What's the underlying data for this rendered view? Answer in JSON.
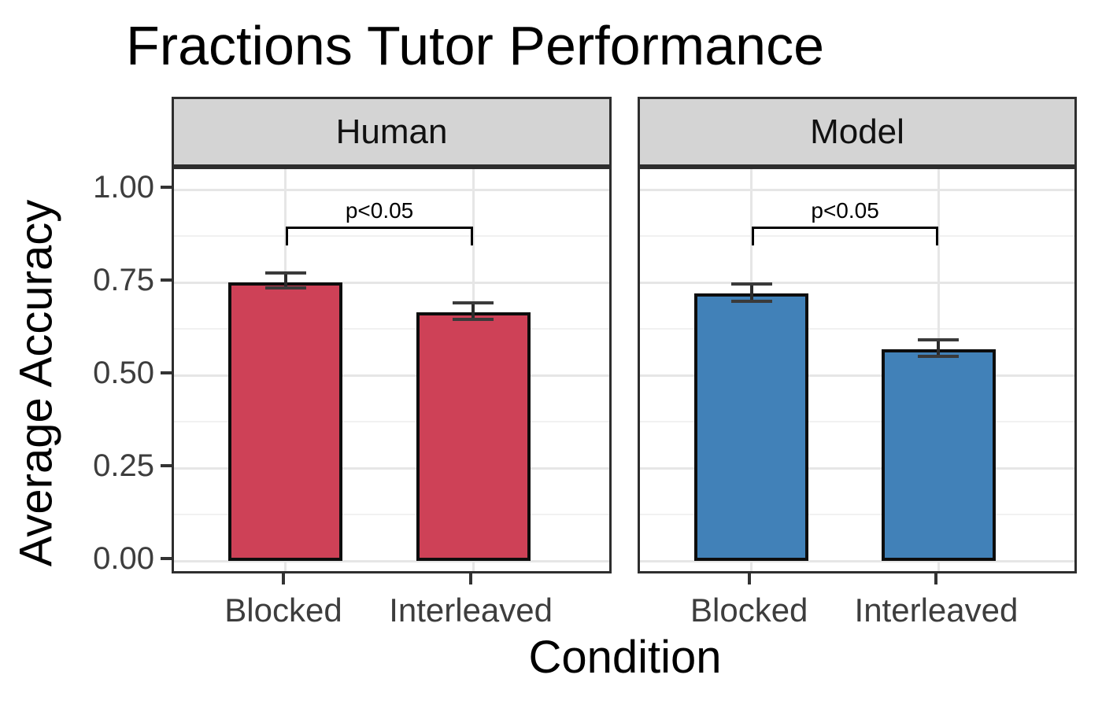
{
  "chart_data": {
    "type": "bar",
    "title": "Fractions Tutor Performance",
    "xlabel": "Condition",
    "ylabel": "Average Accuracy",
    "ylim": [
      0,
      1.05
    ],
    "grid": true,
    "legend": "none",
    "yticks": [
      0,
      0.25,
      0.5,
      0.75,
      1.0
    ],
    "ytick_labels": [
      "0.00",
      "0.25",
      "0.50",
      "0.75",
      "1.00"
    ],
    "yminor": [
      0.125,
      0.375,
      0.625,
      0.875
    ],
    "categories": [
      "Blocked",
      "Interleaved"
    ],
    "facets": [
      {
        "label": "Human",
        "bar_color": "#CE4157",
        "values": [
          0.75,
          0.67
        ],
        "error_low": [
          0.735,
          0.65
        ],
        "error_high": [
          0.775,
          0.695
        ],
        "significance_label": "p<0.05",
        "significance_y": 0.9
      },
      {
        "label": "Model",
        "bar_color": "#4181B8",
        "values": [
          0.72,
          0.57
        ],
        "error_low": [
          0.7,
          0.55
        ],
        "error_high": [
          0.745,
          0.595
        ],
        "significance_label": "p<0.05",
        "significance_y": 0.9
      }
    ],
    "colors": {
      "strip_background": "#D4D4D4",
      "panel_background": "#FFFFFF",
      "panel_border": "#2E2E2E",
      "grid_major": "#E6E6E6",
      "grid_minor": "#F1F1F1",
      "bar_border": "#0D0D0D",
      "error_bar": "#2B2B2B",
      "tick_text": "#3D3D3D",
      "title_text": "#000000"
    }
  }
}
